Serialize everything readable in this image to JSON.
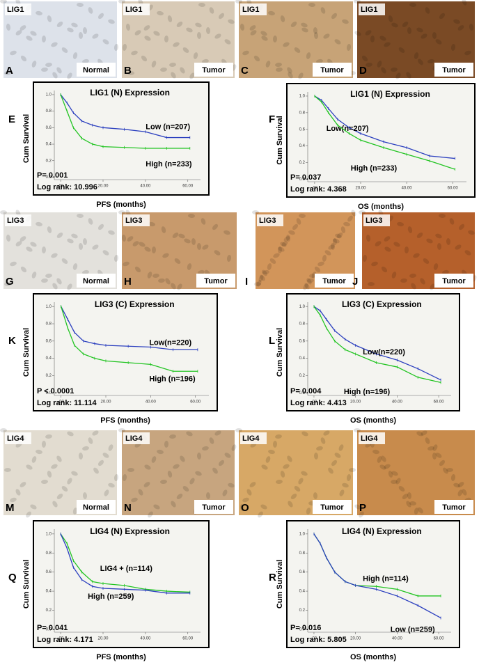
{
  "panels": [
    {
      "letter": "A",
      "marker": "LIG1",
      "tissue": "Normal",
      "color": "#dde2ea"
    },
    {
      "letter": "B",
      "marker": "LIG1",
      "tissue": "Tumor",
      "color": "#d8cab6"
    },
    {
      "letter": "C",
      "marker": "LIG1",
      "tissue": "Tumor",
      "color": "#c7a377"
    },
    {
      "letter": "D",
      "marker": "LIG1",
      "tissue": "Tumor",
      "color": "#7a4a25"
    },
    {
      "letter": "G",
      "marker": "LIG3",
      "tissue": "Normal",
      "color": "#e3e1dc"
    },
    {
      "letter": "H",
      "marker": "LIG3",
      "tissue": "Tumor",
      "color": "#c89a6c"
    },
    {
      "letter": "I",
      "marker": "LIG3",
      "tissue": "Tumor",
      "color": "#d2955a"
    },
    {
      "letter": "J",
      "marker": "LIG3",
      "tissue": "Tumor",
      "color": "#b5602b"
    },
    {
      "letter": "M",
      "marker": "LIG4",
      "tissue": "Normal",
      "color": "#e2dcd0"
    },
    {
      "letter": "N",
      "marker": "LIG4",
      "tissue": "Tumor",
      "color": "#c7a57f"
    },
    {
      "letter": "O",
      "marker": "LIG4",
      "tissue": "Tumor",
      "color": "#d7a866"
    },
    {
      "letter": "P",
      "marker": "LIG4",
      "tissue": "Tumor",
      "color": "#c88b4c"
    }
  ],
  "chart_data": [
    {
      "type": "line",
      "panel": "E",
      "title": "LIG1 (N) Expression",
      "xlabel": "PFS (months)",
      "ylabel": "Cum Survival",
      "annotations": [
        "P= 0.001",
        "Log rank: 10.996"
      ],
      "x": [
        0,
        3,
        6,
        10,
        15,
        20,
        30,
        40,
        50,
        61
      ],
      "series": [
        {
          "name": "Low (n=207)",
          "color": "#2b3fbf",
          "values": [
            1,
            0.9,
            0.78,
            0.68,
            0.63,
            0.6,
            0.58,
            0.55,
            0.48,
            0.48
          ]
        },
        {
          "name": "High (n=233)",
          "color": "#22c422",
          "values": [
            1,
            0.8,
            0.6,
            0.47,
            0.4,
            0.37,
            0.36,
            0.35,
            0.35,
            0.35
          ]
        }
      ],
      "xlim": [
        -3,
        66
      ],
      "ylim": [
        -0.03,
        1.05
      ],
      "xticks": [
        {
          "value": 0,
          "label": ".00"
        },
        {
          "value": 20,
          "label": "20.00"
        },
        {
          "value": 40,
          "label": "40.00"
        },
        {
          "value": 60,
          "label": "60.00"
        }
      ],
      "yticks": [
        {
          "value": 0,
          "label": "0.0"
        },
        {
          "value": 0.2,
          "label": "0.2"
        },
        {
          "value": 0.4,
          "label": "0.4"
        },
        {
          "value": 0.6,
          "label": "0.6"
        },
        {
          "value": 0.8,
          "label": "0.8"
        },
        {
          "value": 1,
          "label": "1.0"
        }
      ]
    },
    {
      "type": "line",
      "panel": "F",
      "title": "LIG1 (N) Expression",
      "xlabel": "OS (months)",
      "ylabel": "Cum Survival",
      "annotations": [
        "P= 0.037",
        "Log rank: 4.368"
      ],
      "x": [
        0,
        3,
        6,
        10,
        15,
        20,
        30,
        40,
        50,
        61
      ],
      "series": [
        {
          "name": "Low(n=207)",
          "color": "#2b3fbf",
          "values": [
            1,
            0.95,
            0.85,
            0.72,
            0.62,
            0.55,
            0.45,
            0.38,
            0.28,
            0.25
          ]
        },
        {
          "name": "High (n=233)",
          "color": "#22c422",
          "values": [
            1,
            0.93,
            0.8,
            0.65,
            0.55,
            0.47,
            0.38,
            0.3,
            0.22,
            0.12
          ]
        }
      ],
      "xlim": [
        -3,
        66
      ],
      "ylim": [
        -0.03,
        1.05
      ],
      "xticks": [
        {
          "value": 0,
          "label": ".00"
        },
        {
          "value": 20,
          "label": "20.00"
        },
        {
          "value": 40,
          "label": "40.00"
        },
        {
          "value": 60,
          "label": "60.00"
        }
      ],
      "yticks": [
        {
          "value": 0,
          "label": "0.0"
        },
        {
          "value": 0.2,
          "label": "0.2"
        },
        {
          "value": 0.4,
          "label": "0.4"
        },
        {
          "value": 0.6,
          "label": "0.6"
        },
        {
          "value": 0.8,
          "label": "0.8"
        },
        {
          "value": 1,
          "label": "1.0"
        }
      ]
    },
    {
      "type": "line",
      "panel": "K",
      "title": "LIG3 (C) Expression",
      "xlabel": "PFS (months)",
      "ylabel": "Cum Survival",
      "annotations": [
        "P < 0.0001",
        "Log rank: 11.114"
      ],
      "x": [
        0,
        3,
        6,
        10,
        15,
        20,
        30,
        40,
        50,
        61
      ],
      "series": [
        {
          "name": "Low(n=220)",
          "color": "#2b3fbf",
          "values": [
            1,
            0.85,
            0.7,
            0.6,
            0.57,
            0.55,
            0.54,
            0.53,
            0.5,
            0.5
          ]
        },
        {
          "name": "High (n=196)",
          "color": "#22c422",
          "values": [
            1,
            0.75,
            0.55,
            0.45,
            0.4,
            0.37,
            0.35,
            0.33,
            0.25,
            0.25
          ]
        }
      ],
      "xlim": [
        -3,
        66
      ],
      "ylim": [
        -0.03,
        1.05
      ],
      "xticks": [
        {
          "value": 0,
          "label": ".00"
        },
        {
          "value": 20,
          "label": "20.00"
        },
        {
          "value": 40,
          "label": "40.00"
        },
        {
          "value": 60,
          "label": "60.00"
        }
      ],
      "yticks": [
        {
          "value": 0,
          "label": "0.0"
        },
        {
          "value": 0.2,
          "label": "0.2"
        },
        {
          "value": 0.4,
          "label": "0.4"
        },
        {
          "value": 0.6,
          "label": "0.6"
        },
        {
          "value": 0.8,
          "label": "0.8"
        },
        {
          "value": 1,
          "label": "1.0"
        }
      ]
    },
    {
      "type": "line",
      "panel": "L",
      "title": "LIG3 (C) Expression",
      "xlabel": "OS (months)",
      "ylabel": "Cum Survival",
      "annotations": [
        "P= 0.004",
        "Log rank: 4.413"
      ],
      "x": [
        0,
        3,
        6,
        10,
        15,
        20,
        30,
        40,
        50,
        61
      ],
      "series": [
        {
          "name": "Low(n=220)",
          "color": "#2b3fbf",
          "values": [
            1,
            0.95,
            0.85,
            0.72,
            0.62,
            0.55,
            0.45,
            0.38,
            0.28,
            0.15
          ]
        },
        {
          "name": "High (n=196)",
          "color": "#22c422",
          "values": [
            1,
            0.9,
            0.75,
            0.6,
            0.5,
            0.45,
            0.35,
            0.3,
            0.18,
            0.12
          ]
        }
      ],
      "xlim": [
        -3,
        66
      ],
      "ylim": [
        -0.03,
        1.05
      ],
      "xticks": [
        {
          "value": 0,
          "label": ".00"
        },
        {
          "value": 20,
          "label": "20.00"
        },
        {
          "value": 40,
          "label": "40.00"
        },
        {
          "value": 60,
          "label": "60.00"
        }
      ],
      "yticks": [
        {
          "value": 0,
          "label": "0.0"
        },
        {
          "value": 0.2,
          "label": "0.2"
        },
        {
          "value": 0.4,
          "label": "0.4"
        },
        {
          "value": 0.6,
          "label": "0.6"
        },
        {
          "value": 0.8,
          "label": "0.8"
        },
        {
          "value": 1,
          "label": "1.0"
        }
      ]
    },
    {
      "type": "line",
      "panel": "Q",
      "title": "LIG4 (N) Expression",
      "xlabel": "PFS (months)",
      "ylabel": "Cum Survival",
      "annotations": [
        "P= 0.041",
        "Log rank: 4.171"
      ],
      "x": [
        0,
        3,
        6,
        10,
        15,
        20,
        30,
        40,
        50,
        61
      ],
      "series": [
        {
          "name": "LIG4 + (n=114)",
          "color": "#22c422",
          "values": [
            1,
            0.9,
            0.72,
            0.6,
            0.5,
            0.48,
            0.46,
            0.42,
            0.4,
            0.39
          ]
        },
        {
          "name": "High (n=259)",
          "color": "#2b3fbf",
          "values": [
            1,
            0.85,
            0.65,
            0.52,
            0.45,
            0.43,
            0.42,
            0.41,
            0.38,
            0.38
          ]
        }
      ],
      "xlim": [
        -3,
        66
      ],
      "ylim": [
        -0.03,
        1.05
      ],
      "xticks": [
        {
          "value": 0,
          "label": ".00"
        },
        {
          "value": 20,
          "label": "20.00"
        },
        {
          "value": 40,
          "label": "40.00"
        },
        {
          "value": 60,
          "label": "60.00"
        }
      ],
      "yticks": [
        {
          "value": 0,
          "label": "0.0"
        },
        {
          "value": 0.2,
          "label": "0.2"
        },
        {
          "value": 0.4,
          "label": "0.4"
        },
        {
          "value": 0.6,
          "label": "0.6"
        },
        {
          "value": 0.8,
          "label": "0.8"
        },
        {
          "value": 1,
          "label": "1.0"
        }
      ]
    },
    {
      "type": "line",
      "panel": "R",
      "title": "LIG4 (N) Expression",
      "xlabel": "OS (months)",
      "ylabel": "Cum Survival",
      "annotations": [
        "P= 0.016",
        "Log rank: 5.805"
      ],
      "x": [
        0,
        3,
        6,
        10,
        15,
        20,
        30,
        40,
        50,
        61
      ],
      "series": [
        {
          "name": "High (n=114)",
          "color": "#22c422",
          "values": [
            1,
            0.9,
            0.75,
            0.6,
            0.5,
            0.46,
            0.45,
            0.42,
            0.35,
            0.35
          ]
        },
        {
          "name": "Low (n=259)",
          "color": "#2b3fbf",
          "values": [
            1,
            0.9,
            0.75,
            0.6,
            0.5,
            0.46,
            0.42,
            0.35,
            0.25,
            0.12
          ]
        }
      ],
      "xlim": [
        -3,
        66
      ],
      "ylim": [
        -0.03,
        1.05
      ],
      "xticks": [
        {
          "value": 0,
          "label": ".00"
        },
        {
          "value": 20,
          "label": "20.00"
        },
        {
          "value": 40,
          "label": "40.00"
        },
        {
          "value": 60,
          "label": "60.00"
        }
      ],
      "yticks": [
        {
          "value": 0,
          "label": "0.0"
        },
        {
          "value": 0.2,
          "label": "0.2"
        },
        {
          "value": 0.4,
          "label": "0.4"
        },
        {
          "value": 0.6,
          "label": "0.6"
        },
        {
          "value": 0.8,
          "label": "0.8"
        },
        {
          "value": 1,
          "label": "1.0"
        }
      ]
    }
  ]
}
